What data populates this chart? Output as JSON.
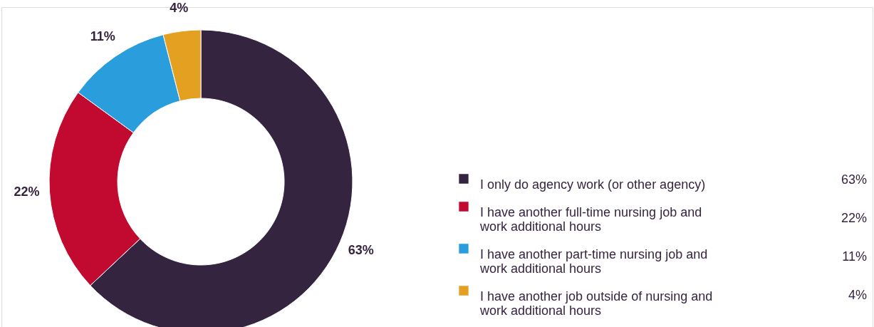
{
  "chart_data": {
    "type": "donut",
    "categories": [
      "I only do agency work (or other agency)",
      "I have another full-time nursing job and work additional hours",
      "I have another part-time nursing job and work additional hours",
      "I have another job outside of nursing and work additional hours"
    ],
    "values": [
      63,
      22,
      11,
      4
    ],
    "colors": [
      "#35243f",
      "#c2092f",
      "#2a9ddc",
      "#e3a021"
    ],
    "value_labels": [
      "63%",
      "22%",
      "11%",
      "4%"
    ],
    "legend": "right"
  }
}
